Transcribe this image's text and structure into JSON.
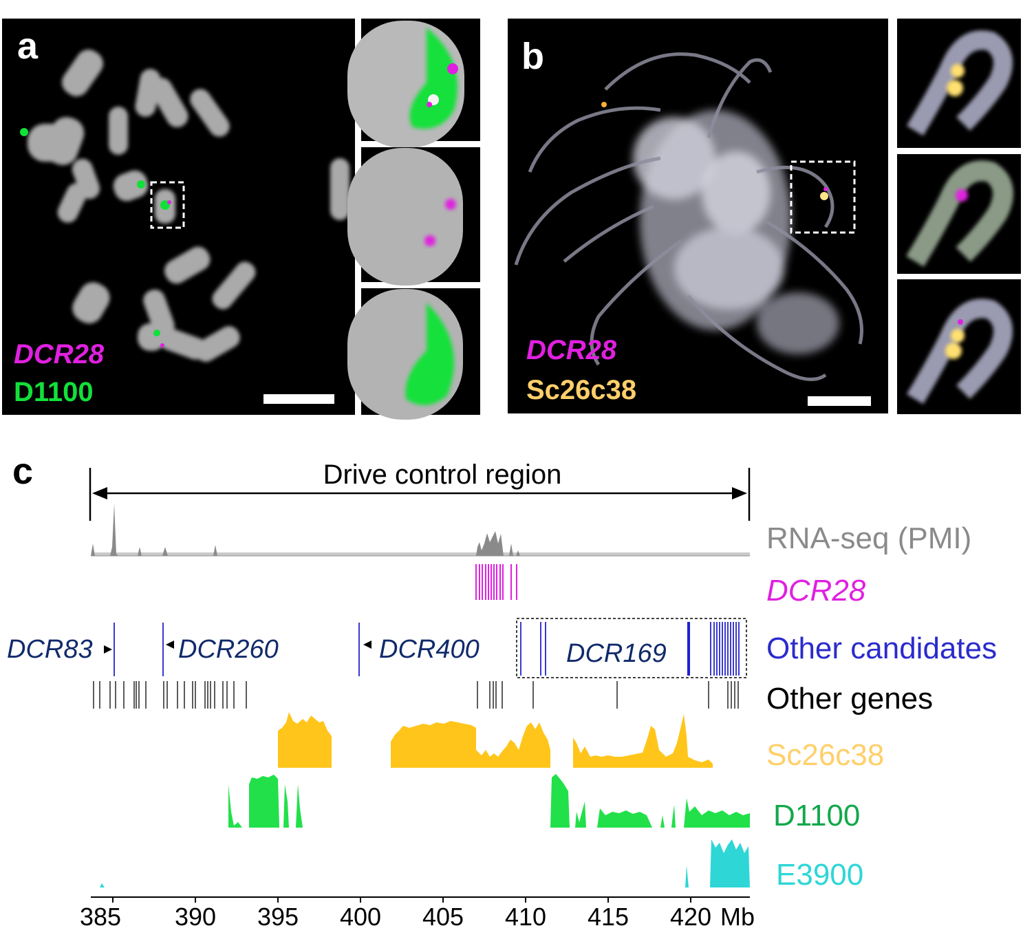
{
  "panel_a": {
    "letter": "a",
    "probe1": "DCR28",
    "probe2": "D1100",
    "colors": {
      "probe1": "#e020e0",
      "probe2": "#12e03a"
    }
  },
  "panel_b": {
    "letter": "b",
    "probe1": "DCR28",
    "probe2": "Sc26c38",
    "colors": {
      "probe1": "#e020e0",
      "probe2": "#ffcf6a"
    }
  },
  "panel_c": {
    "letter": "c",
    "region_label": "Drive control region",
    "tracks": [
      {
        "label": "RNA-seq (PMI)",
        "color": "#8a8a8a",
        "italic": false
      },
      {
        "label": "DCR28",
        "color": "#e020e0",
        "italic": true
      },
      {
        "label": "Other candidates",
        "color": "#2b2bcc",
        "italic": false
      },
      {
        "label": "Other genes",
        "color": "#000000",
        "italic": false
      },
      {
        "label": "Sc26c38",
        "color": "#ffcf6a",
        "italic": false
      },
      {
        "label": "D1100",
        "color": "#12a84a",
        "italic": false
      },
      {
        "label": "E3900",
        "color": "#2ed6d6",
        "italic": false
      }
    ],
    "candidates": [
      "DCR83",
      "DCR260",
      "DCR400",
      "DCR169"
    ],
    "axis_ticks": [
      "385",
      "390",
      "395",
      "400",
      "405",
      "410",
      "415",
      "420"
    ],
    "axis_unit": "Mb"
  }
}
